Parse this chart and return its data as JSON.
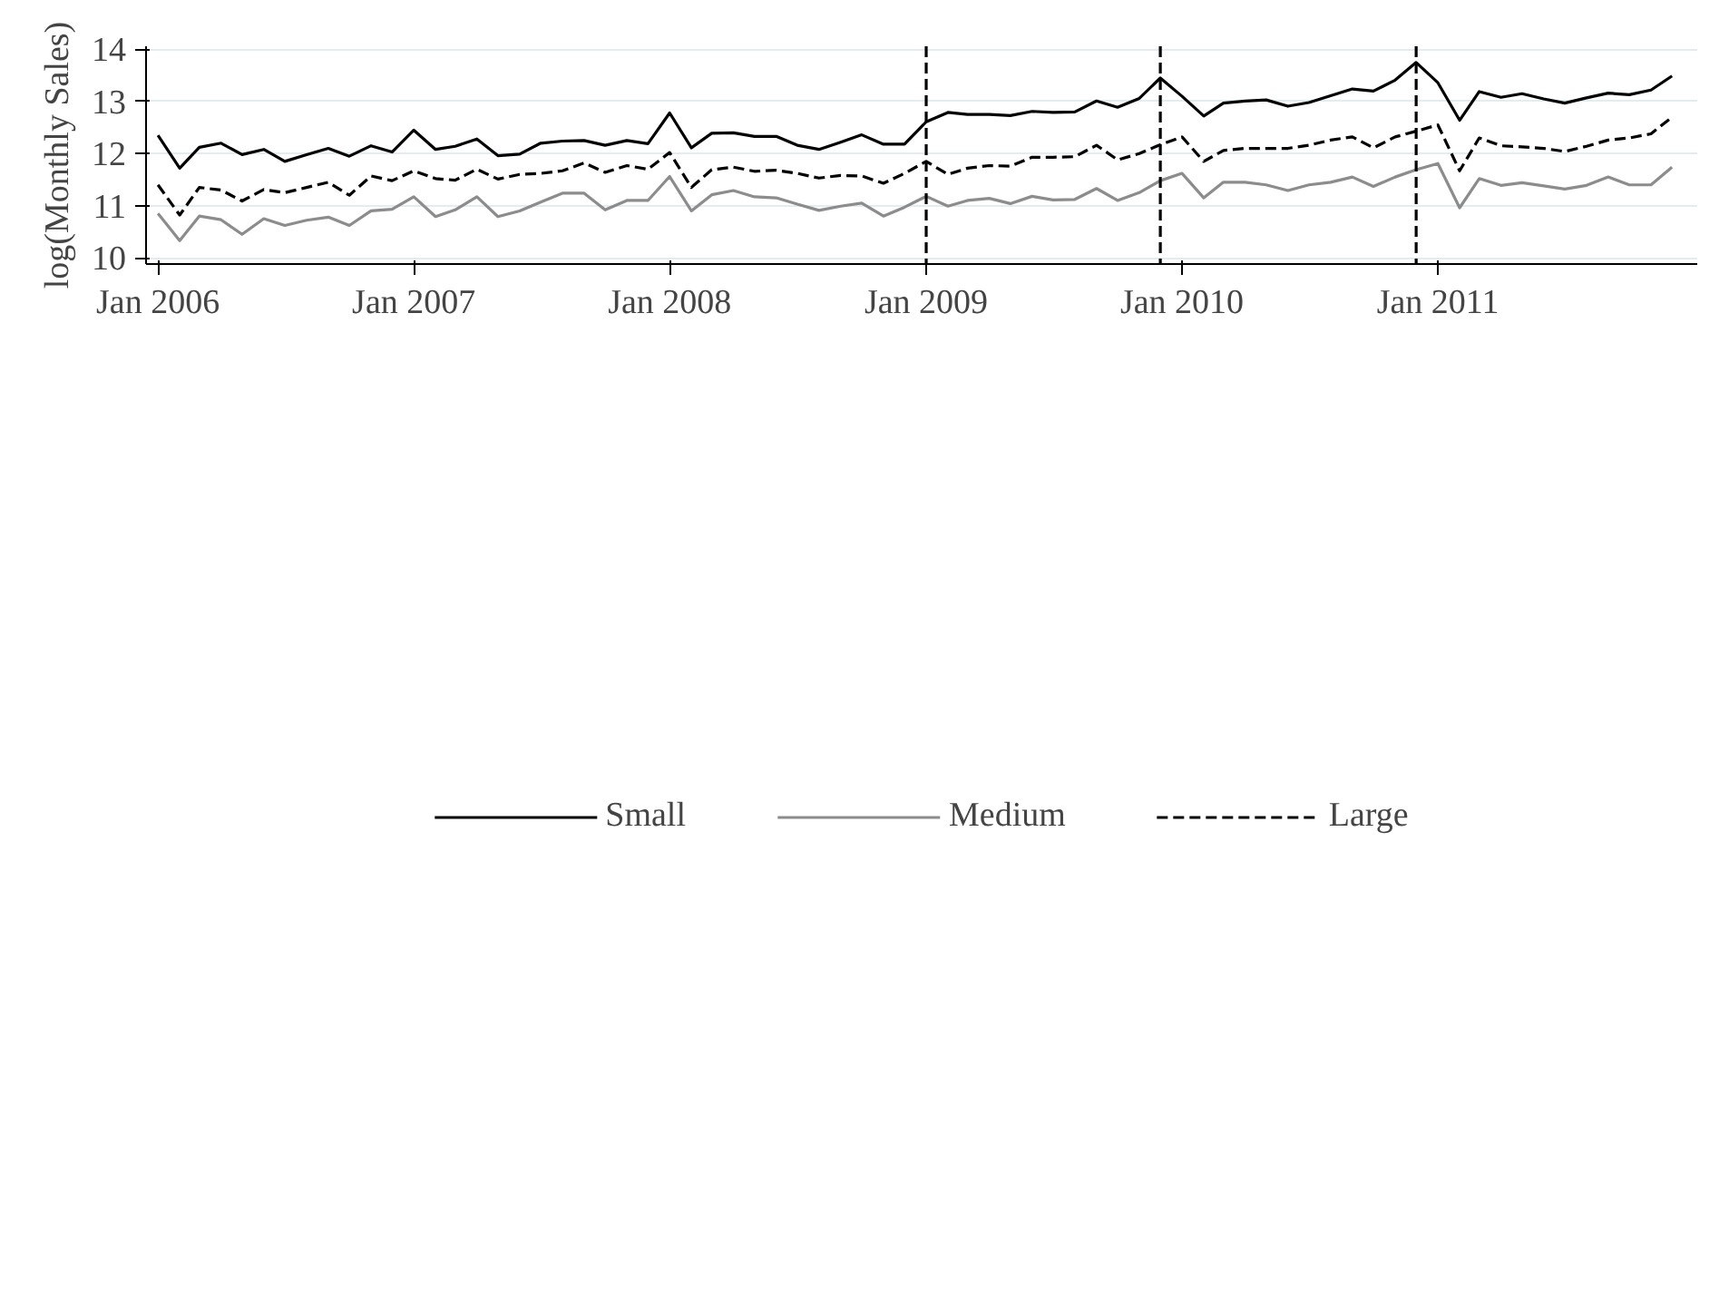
{
  "chart_data": {
    "type": "line",
    "ylabel": "log(Monthly Sales)",
    "x": [
      "2006-01",
      "2006-02",
      "2006-03",
      "2006-04",
      "2006-05",
      "2006-06",
      "2006-07",
      "2006-08",
      "2006-09",
      "2006-10",
      "2006-11",
      "2006-12",
      "2007-01",
      "2007-02",
      "2007-03",
      "2007-04",
      "2007-05",
      "2007-06",
      "2007-07",
      "2007-08",
      "2007-09",
      "2007-10",
      "2007-11",
      "2007-12",
      "2008-01",
      "2008-02",
      "2008-03",
      "2008-04",
      "2008-05",
      "2008-06",
      "2008-07",
      "2008-08",
      "2008-09",
      "2008-10",
      "2008-11",
      "2008-12",
      "2009-01",
      "2009-02",
      "2009-03",
      "2009-04",
      "2009-05",
      "2009-06",
      "2009-07",
      "2009-08",
      "2009-09",
      "2009-10",
      "2009-11",
      "2009-12",
      "2010-01",
      "2010-02",
      "2010-03",
      "2010-04",
      "2010-05",
      "2010-06",
      "2010-07",
      "2010-08",
      "2010-09",
      "2010-10",
      "2010-11",
      "2010-12",
      "2011-01",
      "2011-02",
      "2011-03",
      "2011-04",
      "2011-05",
      "2011-06",
      "2011-07",
      "2011-08",
      "2011-09",
      "2011-10",
      "2011-11",
      "2011-12"
    ],
    "series": [
      {
        "name": "Small",
        "color": "#000000",
        "line_style": "solid",
        "values": [
          12.35,
          11.72,
          12.12,
          12.2,
          11.98,
          12.08,
          11.85,
          11.98,
          12.1,
          11.95,
          12.15,
          12.03,
          12.45,
          12.08,
          12.14,
          12.28,
          11.96,
          11.99,
          12.2,
          12.24,
          12.25,
          12.16,
          12.25,
          12.19,
          12.78,
          12.11,
          12.39,
          12.4,
          12.33,
          12.33,
          12.16,
          12.08,
          12.22,
          12.36,
          12.18,
          12.18,
          12.61,
          12.79,
          12.75,
          12.75,
          12.73,
          12.81,
          12.79,
          12.8,
          13.01,
          12.89,
          13.06,
          13.45,
          13.1,
          12.72,
          12.97,
          13.01,
          13.03,
          12.91,
          12.98,
          13.11,
          13.24,
          13.2,
          13.41,
          13.75,
          13.36,
          12.64,
          13.19,
          13.08,
          13.15,
          13.05,
          12.97,
          13.07,
          13.16,
          13.13,
          13.22,
          13.49
        ]
      },
      {
        "name": "Medium",
        "color": "#8c8c8c",
        "line_style": "solid",
        "values": [
          10.85,
          10.33,
          10.8,
          10.73,
          10.45,
          10.75,
          10.62,
          10.72,
          10.78,
          10.62,
          10.9,
          10.93,
          11.17,
          10.79,
          10.92,
          11.17,
          10.79,
          10.9,
          11.07,
          11.24,
          11.24,
          10.92,
          11.1,
          11.1,
          11.56,
          10.9,
          11.21,
          11.29,
          11.17,
          11.15,
          11.03,
          10.91,
          10.99,
          11.05,
          10.8,
          10.97,
          11.18,
          10.99,
          11.1,
          11.14,
          11.04,
          11.18,
          11.11,
          11.12,
          11.33,
          11.1,
          11.25,
          11.48,
          11.62,
          11.15,
          11.45,
          11.45,
          11.4,
          11.29,
          11.4,
          11.45,
          11.55,
          11.37,
          11.55,
          11.69,
          11.81,
          10.96,
          11.52,
          11.39,
          11.44,
          11.38,
          11.32,
          11.39,
          11.55,
          11.4,
          11.4,
          11.74
        ]
      },
      {
        "name": "Large",
        "color": "#000000",
        "line_style": "dashed",
        "values": [
          11.4,
          10.82,
          11.35,
          11.3,
          11.09,
          11.31,
          11.25,
          11.35,
          11.45,
          11.2,
          11.57,
          11.48,
          11.67,
          11.52,
          11.49,
          11.7,
          11.51,
          11.6,
          11.62,
          11.67,
          11.82,
          11.64,
          11.77,
          11.7,
          12.02,
          11.35,
          11.69,
          11.74,
          11.66,
          11.68,
          11.62,
          11.53,
          11.58,
          11.57,
          11.43,
          11.62,
          11.85,
          11.6,
          11.72,
          11.77,
          11.76,
          11.93,
          11.93,
          11.94,
          12.16,
          11.88,
          12.0,
          12.17,
          12.32,
          11.85,
          12.06,
          12.1,
          12.1,
          12.1,
          12.16,
          12.26,
          12.32,
          12.11,
          12.32,
          12.43,
          12.55,
          11.67,
          12.3,
          12.15,
          12.13,
          12.1,
          12.04,
          12.14,
          12.26,
          12.3,
          12.38,
          12.7
        ]
      }
    ],
    "xlim": [
      "2005-12-15",
      "2012-01-06"
    ],
    "xticks": [
      {
        "value": "2006-01",
        "label": "Jan 2006"
      },
      {
        "value": "2007-01",
        "label": "Jan 2007"
      },
      {
        "value": "2008-01",
        "label": "Jan 2008"
      },
      {
        "value": "2009-01",
        "label": "Jan 2009"
      },
      {
        "value": "2010-01",
        "label": "Jan 2010"
      },
      {
        "value": "2011-01",
        "label": "Jan 2011"
      }
    ],
    "ylim": [
      9.88,
      14.06
    ],
    "yticks": [
      10,
      11,
      12,
      13,
      14
    ],
    "ref_lines": [
      {
        "axis": "x",
        "value": "2009-01",
        "color": "#000000",
        "line_style": "dashed"
      },
      {
        "axis": "x",
        "value": "2009-12",
        "color": "#000000",
        "line_style": "dashed"
      },
      {
        "axis": "x",
        "value": "2010-12",
        "color": "#000000",
        "line_style": "dashed"
      }
    ],
    "grid": "y",
    "legend": "bottom"
  }
}
